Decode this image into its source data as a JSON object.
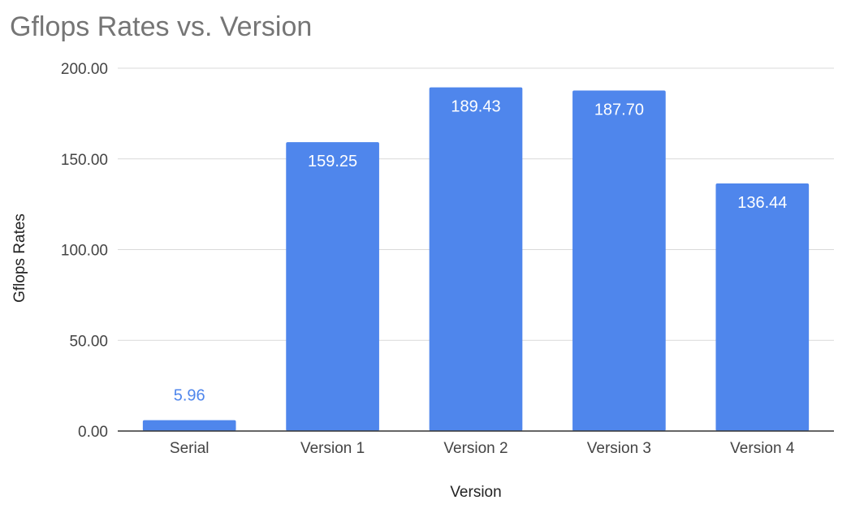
{
  "chart_data": {
    "type": "bar",
    "title": "Gflops Rates vs. Version",
    "xlabel": "Version",
    "ylabel": "Gflops Rates",
    "categories": [
      "Serial",
      "Version 1",
      "Version 2",
      "Version 3",
      "Version 4"
    ],
    "values": [
      5.96,
      159.25,
      189.43,
      187.7,
      136.44
    ],
    "value_labels": [
      "5.96",
      "159.25",
      "189.43",
      "187.70",
      "136.44"
    ],
    "yticks": [
      "0.00",
      "50.00",
      "100.00",
      "150.00",
      "200.00"
    ],
    "ylim": [
      0,
      200
    ],
    "grid": true,
    "legend": "none",
    "bar_color": "#4f86ec"
  }
}
